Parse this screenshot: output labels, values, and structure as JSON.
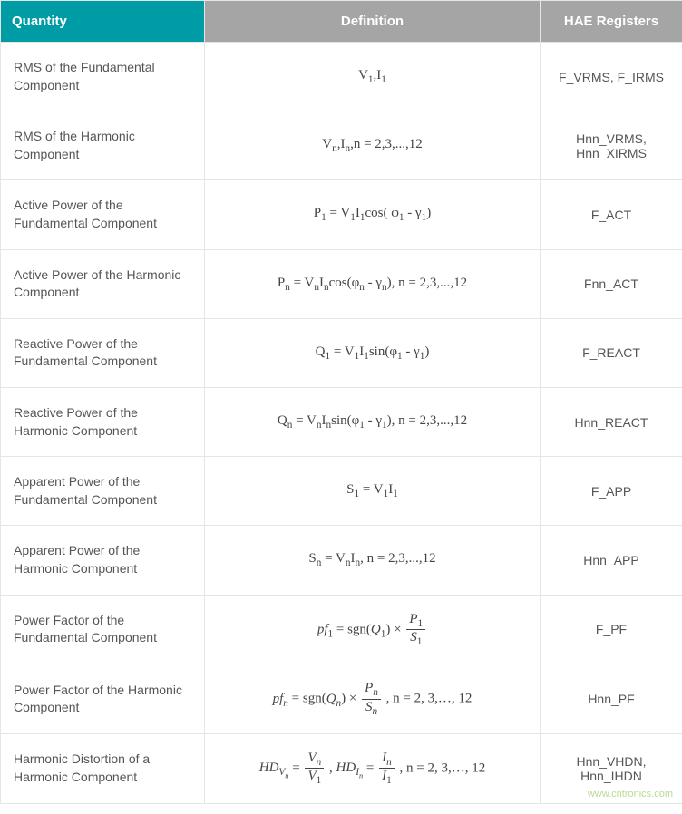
{
  "table": {
    "header_bg_primary": "#009ca6",
    "header_bg_secondary": "#a5a5a5",
    "header_text_color": "#ffffff",
    "cell_text_color": "#555555",
    "border_color": "#e5e5e5",
    "columns": [
      "Quantity",
      "Definition",
      "HAE Registers"
    ],
    "rows": [
      {
        "quantity": "RMS of the Fundamental Component",
        "definition_html": "V<sub>1</sub>,I<sub>1</sub>",
        "registers": "F_VRMS, F_IRMS"
      },
      {
        "quantity": "RMS of the Harmonic Component",
        "definition_html": "V<sub>n</sub>,I<sub>n</sub>,n = 2,3,...,12",
        "registers": "Hnn_VRMS, Hnn_XIRMS"
      },
      {
        "quantity": "Active Power of the Fundamental Component",
        "definition_html": "P<sub>1</sub> = V<sub>1</sub>I<sub>1</sub>cos( φ<sub>1</sub> - γ<sub>1</sub>)",
        "registers": "F_ACT"
      },
      {
        "quantity": "Active Power of the Harmonic Component",
        "definition_html": "P<sub>n</sub> = V<sub>n</sub>I<sub>n</sub>cos(φ<sub>n</sub> - γ<sub>n</sub>), n = 2,3,...,12",
        "registers": "Fnn_ACT"
      },
      {
        "quantity": "Reactive Power of the Fundamental Component",
        "definition_html": "Q<sub>1</sub> = V<sub>1</sub>I<sub>1</sub>sin(φ<sub>1</sub> - γ<sub>1</sub>)",
        "registers": "F_REACT"
      },
      {
        "quantity": "Reactive Power of the Harmonic Component",
        "definition_html": "Q<sub>n</sub> = V<sub>n</sub>I<sub>n</sub>sin(φ<sub>1</sub> - γ<sub>1</sub>), n = 2,3,...,12",
        "registers": "Hnn_REACT"
      },
      {
        "quantity": "Apparent Power of the Fundamental Component",
        "definition_html": "S<sub>1</sub> = V<sub>1</sub>I<sub>1</sub>",
        "registers": "F_APP"
      },
      {
        "quantity": "Apparent Power of the Harmonic Component",
        "definition_html": "S<sub>n</sub> = V<sub>n</sub>I<sub>n</sub>, n = 2,3,...,12",
        "registers": "Hnn_APP"
      },
      {
        "quantity": "Power Factor of the Fundamental Component",
        "definition_html": "<span class='ital'>pf</span><sub>1</sub> = sgn(<span class='ital'>Q</span><sub>1</sub>) × <span class='frac'><span class='num'><span class='ital'>P</span><sub>1</sub></span><span class='den'><span class='ital'>S</span><sub>1</sub></span></span>",
        "registers": "F_PF"
      },
      {
        "quantity": "Power Factor of the Harmonic Component",
        "definition_html": "<span class='ital'>pf<sub>n</sub></span> = sgn(<span class='ital'>Q<sub>n</sub></span>) × <span class='frac'><span class='num'><span class='ital'>P<sub>n</sub></span></span><span class='den'><span class='ital'>S<sub>n</sub></span></span></span> , n = 2, 3,…, 12",
        "registers": "Hnn_PF"
      },
      {
        "quantity": "Harmonic Distortion of a Harmonic Component",
        "definition_html": "<span class='ital'>HD<sub>V<sub>n</sub></sub></span> = <span class='frac'><span class='num'><span class='ital'>V<sub>n</sub></span></span><span class='den'><span class='ital'>V</span><sub>1</sub></span></span> , <span class='ital'>HD<sub>I<sub>n</sub></sub></span> = <span class='frac'><span class='num'><span class='ital'>I<sub>n</sub></span></span><span class='den'><span class='ital'>I</span><sub>1</sub></span></span> , n = 2, 3,…, 12",
        "registers": "Hnn_VHDN, Hnn_IHDN"
      }
    ]
  },
  "watermark": "www.cntronics.com"
}
